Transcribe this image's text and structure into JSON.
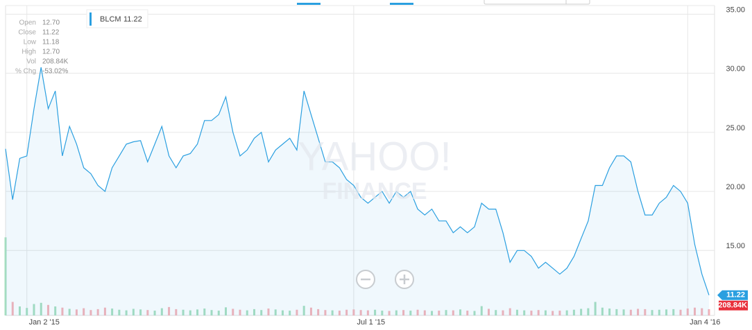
{
  "chart_data": {
    "type": "line",
    "watermark": [
      "YAHOO!",
      "FINANCE"
    ],
    "info": [
      {
        "label": "Open",
        "value": "12.70"
      },
      {
        "label": "Close",
        "value": "11.22"
      },
      {
        "label": "Low",
        "value": "11.18"
      },
      {
        "label": "High",
        "value": "12.70"
      },
      {
        "label": "Vol",
        "value": "208.84K"
      },
      {
        "label": "% Chg",
        "value": "-53.02%"
      }
    ],
    "categories": [
      null,
      null,
      null,
      "Jan 2 '15",
      null,
      null,
      null,
      null,
      null,
      null,
      null,
      null,
      null,
      null,
      null,
      null,
      null,
      null,
      null,
      null,
      null,
      null,
      null,
      null,
      null,
      null,
      null,
      null,
      null,
      null,
      null,
      null,
      null,
      null,
      null,
      null,
      null,
      null,
      null,
      null,
      null,
      null,
      null,
      null,
      null,
      null,
      null,
      null,
      null,
      "Jul 1 '15",
      null,
      null,
      null,
      null,
      null,
      null,
      null,
      null,
      null,
      null,
      null,
      null,
      null,
      null,
      null,
      null,
      null,
      null,
      null,
      null,
      null,
      null,
      null,
      null,
      null,
      null,
      null,
      null,
      null,
      null,
      null,
      null,
      null,
      null,
      null,
      null,
      null,
      null,
      null,
      null,
      null,
      null,
      null,
      null,
      null,
      null,
      "Jan 4 '16",
      null,
      null,
      null
    ],
    "series": [
      {
        "name": "BLCM",
        "color": "#2a9fe0",
        "values": [
          23.6,
          19.3,
          22.8,
          23.0,
          27.0,
          30.5,
          27.0,
          28.5,
          23.0,
          25.5,
          24.0,
          22.0,
          21.5,
          20.5,
          20.0,
          22.0,
          23.0,
          24.0,
          24.2,
          24.3,
          22.5,
          24.0,
          25.5,
          23.0,
          22.0,
          23.0,
          23.2,
          24.0,
          26.0,
          26.0,
          26.5,
          28.0,
          25.0,
          23.0,
          23.5,
          24.5,
          25.0,
          22.5,
          23.5,
          24.0,
          24.5,
          23.5,
          28.5,
          26.5,
          24.5,
          22.5,
          22.5,
          22.0,
          21.0,
          20.5,
          19.5,
          19.0,
          19.5,
          20.0,
          19.0,
          20.0,
          19.5,
          20.0,
          18.5,
          18.0,
          18.5,
          17.5,
          17.5,
          16.5,
          17.0,
          16.5,
          17.0,
          19.0,
          18.5,
          18.5,
          16.5,
          14.0,
          15.0,
          15.0,
          14.5,
          13.5,
          14.0,
          13.5,
          13.0,
          13.5,
          14.5,
          16.0,
          17.5,
          20.5,
          20.5,
          22.0,
          23.0,
          23.0,
          22.5,
          20.0,
          18.0,
          18.0,
          19.0,
          19.5,
          20.5,
          20.0,
          19.0,
          15.5,
          13.0,
          11.22
        ]
      }
    ],
    "volume": {
      "lim": [
        0,
        3000000
      ],
      "up": "#a8dfc0",
      "down": "#f6b3b8",
      "values": [
        2600000,
        450000,
        300000,
        250000,
        380000,
        420000,
        350000,
        300000,
        260000,
        220000,
        200000,
        240000,
        180000,
        210000,
        260000,
        230000,
        190000,
        170000,
        220000,
        200000,
        180000,
        160000,
        240000,
        280000,
        210000,
        190000,
        170000,
        200000,
        230000,
        180000,
        160000,
        270000,
        220000,
        190000,
        170000,
        210000,
        180000,
        230000,
        200000,
        170000,
        160000,
        190000,
        320000,
        260000,
        210000,
        180000,
        170000,
        160000,
        190000,
        200000,
        180000,
        170000,
        190000,
        160000,
        150000,
        170000,
        180000,
        160000,
        190000,
        170000,
        150000,
        160000,
        180000,
        170000,
        200000,
        160000,
        150000,
        310000,
        220000,
        180000,
        170000,
        240000,
        190000,
        170000,
        160000,
        180000,
        170000,
        150000,
        160000,
        170000,
        190000,
        220000,
        240000,
        450000,
        260000,
        230000,
        210000,
        200000,
        190000,
        220000,
        210000,
        180000,
        190000,
        200000,
        210000,
        190000,
        230000,
        260000,
        240000,
        208840
      ]
    },
    "ylim": [
      9.5,
      36.2
    ],
    "yticks": [
      {
        "value": 15,
        "label": "15.00"
      },
      {
        "value": 20,
        "label": "20.00"
      },
      {
        "value": 25,
        "label": "25.00"
      },
      {
        "value": 30,
        "label": "30.00"
      },
      {
        "value": 35,
        "label": "35.00"
      }
    ],
    "grid": true
  }
}
